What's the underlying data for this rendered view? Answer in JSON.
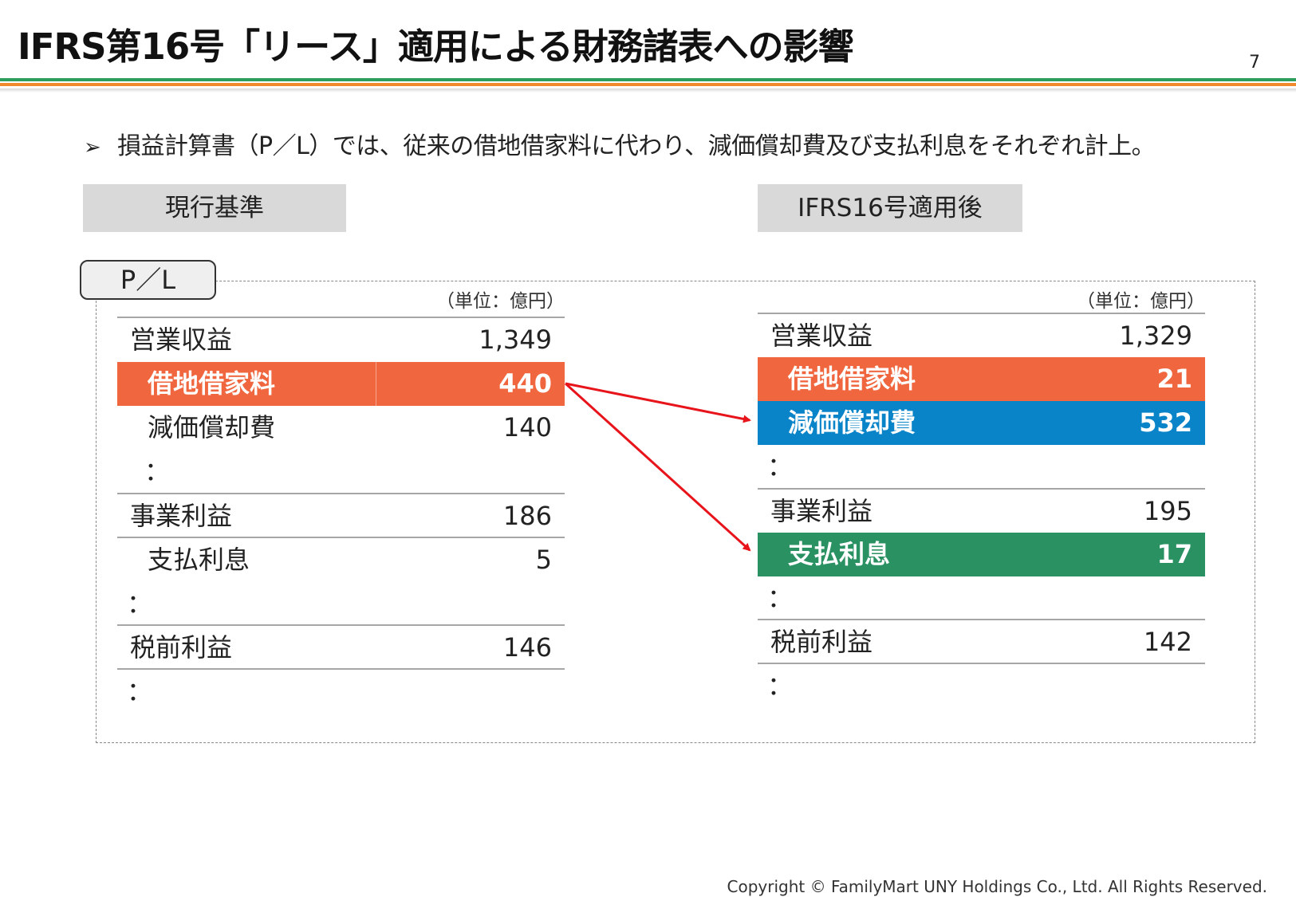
{
  "header": {
    "title": "IFRS第16号「リース」適用による財務諸表への影響",
    "page_number": "7"
  },
  "bullet": {
    "marker": "➢",
    "text": "損益計算書（P／L）では、従来の借地借家料に代わり、減価償却費及び支払利息をそれぞれ計上。"
  },
  "left_column": {
    "heading": "現行基準",
    "unit": "（単位：億円）",
    "rows": [
      {
        "label": "営業収益",
        "value": "1,349"
      },
      {
        "label": "借地借家料",
        "value": "440"
      },
      {
        "label": "減価償却費",
        "value": "140"
      },
      {
        "label": "：",
        "value": ""
      },
      {
        "label": "事業利益",
        "value": "186"
      },
      {
        "label": "支払利息",
        "value": "5"
      },
      {
        "label": "：",
        "value": ""
      },
      {
        "label": "税前利益",
        "value": "146"
      },
      {
        "label": "：",
        "value": ""
      }
    ]
  },
  "right_column": {
    "heading": "IFRS16号適用後",
    "unit": "（単位：億円）",
    "rows": [
      {
        "label": "営業収益",
        "value": "1,329"
      },
      {
        "label": "借地借家料",
        "value": "21"
      },
      {
        "label": "減価償却費",
        "value": "532"
      },
      {
        "label": "：",
        "value": ""
      },
      {
        "label": "事業利益",
        "value": "195"
      },
      {
        "label": "支払利息",
        "value": "17"
      },
      {
        "label": "：",
        "value": ""
      },
      {
        "label": "税前利益",
        "value": "142"
      },
      {
        "label": "：",
        "value": ""
      }
    ]
  },
  "pl_tag": "P／L",
  "colors": {
    "orange": "#f0673f",
    "blue": "#0a84c8",
    "green": "#299162",
    "arrow_red": "#e8141b",
    "stripe_green": "#2e9e5e",
    "stripe_orange": "#f08a2c"
  },
  "footer": {
    "copyright": "Copyright © FamilyMart UNY Holdings Co., Ltd. All Rights Reserved."
  }
}
